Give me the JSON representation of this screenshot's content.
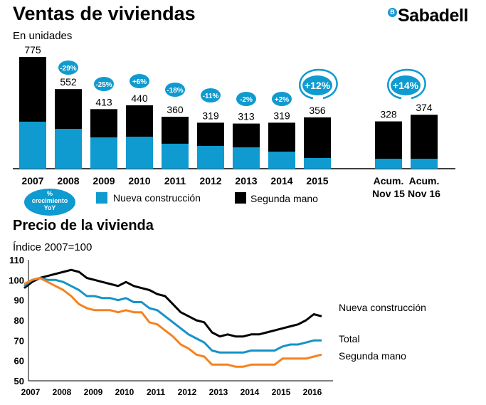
{
  "header": {
    "title": "Ventas de viviendas",
    "subtitle": "En unidades",
    "logo_text": "Sabadell",
    "logo_badge": "B"
  },
  "chart_data": [
    {
      "type": "bar",
      "stacked": true,
      "title": "Ventas de viviendas",
      "ylabel": "En unidades",
      "categories": [
        "2007",
        "2008",
        "2009",
        "2010",
        "2011",
        "2012",
        "2013",
        "2014",
        "2015",
        "Acum. Nov 15",
        "Acum. Nov 16"
      ],
      "category_lines": [
        [
          "2007"
        ],
        [
          "2008"
        ],
        [
          "2009"
        ],
        [
          "2010"
        ],
        [
          "2011"
        ],
        [
          "2012"
        ],
        [
          "2013"
        ],
        [
          "2014"
        ],
        [
          "2015"
        ],
        [
          "Acum.",
          "Nov 15"
        ],
        [
          "Acum.",
          "Nov 16"
        ]
      ],
      "totals": [
        "775",
        "552",
        "413",
        "440",
        "360",
        "319",
        "313",
        "319",
        "356",
        "328",
        "374"
      ],
      "series": [
        {
          "name": "Nueva construcción",
          "color": "#0f9ad0",
          "values": [
            326,
            276,
            217,
            222,
            173,
            158,
            148,
            118,
            74,
            69,
            69
          ]
        },
        {
          "name": "Segunda mano",
          "color": "#000000",
          "values": [
            449,
            276,
            196,
            218,
            187,
            161,
            165,
            201,
            282,
            259,
            305
          ]
        }
      ],
      "growth_badges": [
        {
          "after": "2008",
          "label": "-29%",
          "highlight": false
        },
        {
          "after": "2009",
          "label": "-25%",
          "highlight": false
        },
        {
          "after": "2010",
          "label": "+6%",
          "highlight": false
        },
        {
          "after": "2011",
          "label": "-18%",
          "highlight": false
        },
        {
          "after": "2012",
          "label": "-11%",
          "highlight": false
        },
        {
          "after": "2013",
          "label": "-2%",
          "highlight": false
        },
        {
          "after": "2014",
          "label": "+2%",
          "highlight": false
        },
        {
          "after": "2015",
          "label": "+12%",
          "highlight": true
        },
        {
          "after": "Acum. Nov 16",
          "label": "+14%",
          "highlight": true
        }
      ],
      "badge_legend": [
        "%",
        "crecimiento",
        "YoY"
      ],
      "legend_placement": "bottom",
      "ylim": [
        0,
        800
      ],
      "badge_color": "#0f9ad0"
    },
    {
      "type": "line",
      "title": "Precio de la vivienda",
      "ylabel": "Índice 2007=100",
      "x_start": 2007,
      "x_step": "quarter",
      "xticks": [
        "2007",
        "2008",
        "2009",
        "2010",
        "2011",
        "2012",
        "2013",
        "2014",
        "2015",
        "2016"
      ],
      "yticks": [
        "50",
        "60",
        "70",
        "80",
        "90",
        "100",
        "110"
      ],
      "ylim": [
        50,
        110
      ],
      "grid": false,
      "legend_placement": "right (end-of-line labels)",
      "series": [
        {
          "name": "Nueva construcción",
          "color": "#000000",
          "values": [
            96,
            99,
            101,
            102,
            103,
            104,
            105,
            104,
            101,
            100,
            99,
            98,
            97,
            99,
            97,
            96,
            95,
            93,
            92,
            88,
            84,
            82,
            80,
            79,
            74,
            72,
            73,
            72,
            72,
            73,
            73,
            74,
            75,
            76,
            77,
            78,
            80,
            83,
            82
          ]
        },
        {
          "name": "Total",
          "color": "#1593c8",
          "values": [
            97,
            100,
            101,
            100,
            100,
            99,
            97,
            95,
            92,
            92,
            91,
            91,
            90,
            91,
            89,
            89,
            86,
            85,
            82,
            79,
            76,
            73,
            71,
            69,
            65,
            64,
            64,
            64,
            64,
            65,
            65,
            65,
            65,
            67,
            68,
            68,
            69,
            70,
            70
          ]
        },
        {
          "name": "Segunda mano",
          "color": "#f58220",
          "values": [
            98,
            100,
            101,
            99,
            97,
            95,
            92,
            88,
            86,
            85,
            85,
            85,
            84,
            85,
            84,
            84,
            79,
            78,
            75,
            72,
            68,
            66,
            63,
            62,
            58,
            58,
            58,
            57,
            57,
            58,
            58,
            58,
            58,
            61,
            61,
            61,
            61,
            62,
            63
          ]
        }
      ]
    }
  ]
}
